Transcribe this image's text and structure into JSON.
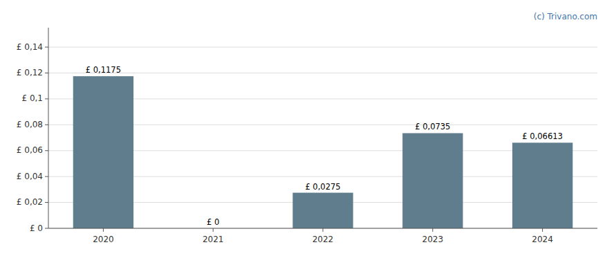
{
  "chart_data": {
    "type": "bar",
    "categories": [
      "2020",
      "2021",
      "2022",
      "2023",
      "2024"
    ],
    "values": [
      0.1175,
      0.0,
      0.0275,
      0.0735,
      0.06613
    ],
    "value_labels": [
      "£ 0,1175",
      "£ 0",
      "£ 0,0275",
      "£ 0,0735",
      "£ 0,06613"
    ],
    "data_labels": true,
    "color": "#5f7d8c",
    "ylim": [
      0,
      0.155
    ],
    "yticks": [
      {
        "value": 0,
        "label": "£ 0"
      },
      {
        "value": 0.02,
        "label": "£ 0,02"
      },
      {
        "value": 0.04,
        "label": "£ 0,04"
      },
      {
        "value": 0.06,
        "label": "£ 0,06"
      },
      {
        "value": 0.08,
        "label": "£ 0,08"
      },
      {
        "value": 0.1,
        "label": "£ 0,1"
      },
      {
        "value": 0.12,
        "label": "£ 0,12"
      },
      {
        "value": 0.14,
        "label": "£ 0,14"
      }
    ],
    "grid": true,
    "annotations": [
      {
        "text": "(c) Trivano.com",
        "color": "#4477aa"
      }
    ]
  }
}
